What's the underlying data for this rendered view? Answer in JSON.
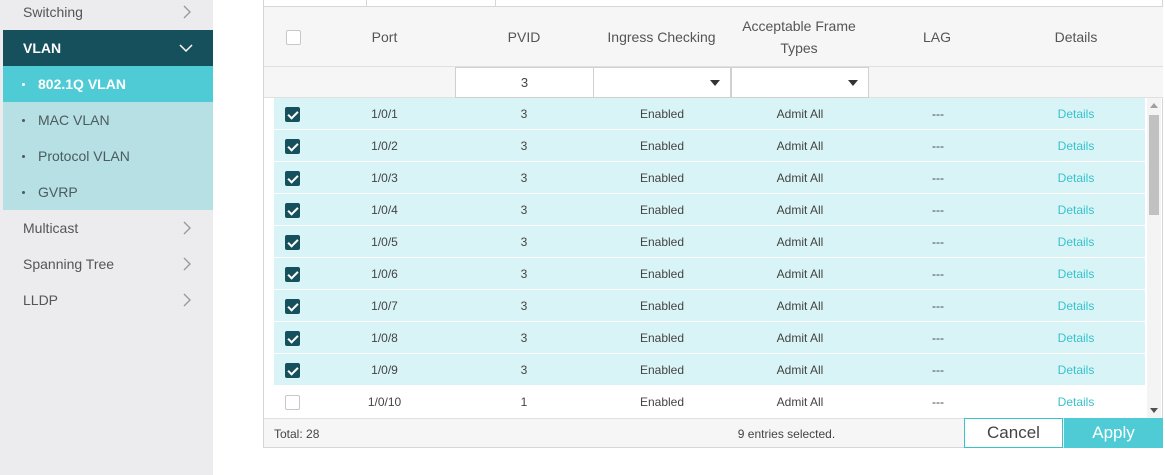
{
  "sidebar": {
    "items": [
      {
        "label": "Switching"
      },
      {
        "label": "VLAN"
      },
      {
        "label": "Multicast"
      },
      {
        "label": "Spanning Tree"
      },
      {
        "label": "LLDP"
      }
    ],
    "vlan_subitems": [
      {
        "label": "802.1Q VLAN"
      },
      {
        "label": "MAC VLAN"
      },
      {
        "label": "Protocol VLAN"
      },
      {
        "label": "GVRP"
      }
    ]
  },
  "table": {
    "headers": {
      "port": "Port",
      "pvid": "PVID",
      "ingress": "Ingress Checking",
      "frame_line1": "Acceptable Frame",
      "frame_line2": "Types",
      "lag": "LAG",
      "details": "Details"
    },
    "filter": {
      "pvid": "3",
      "ingress": "",
      "frame_types": ""
    },
    "rows": [
      {
        "checked": true,
        "port": "1/0/1",
        "pvid": "3",
        "ingress": "Enabled",
        "frame": "Admit All",
        "lag": "---",
        "details": "Details"
      },
      {
        "checked": true,
        "port": "1/0/2",
        "pvid": "3",
        "ingress": "Enabled",
        "frame": "Admit All",
        "lag": "---",
        "details": "Details"
      },
      {
        "checked": true,
        "port": "1/0/3",
        "pvid": "3",
        "ingress": "Enabled",
        "frame": "Admit All",
        "lag": "---",
        "details": "Details"
      },
      {
        "checked": true,
        "port": "1/0/4",
        "pvid": "3",
        "ingress": "Enabled",
        "frame": "Admit All",
        "lag": "---",
        "details": "Details"
      },
      {
        "checked": true,
        "port": "1/0/5",
        "pvid": "3",
        "ingress": "Enabled",
        "frame": "Admit All",
        "lag": "---",
        "details": "Details"
      },
      {
        "checked": true,
        "port": "1/0/6",
        "pvid": "3",
        "ingress": "Enabled",
        "frame": "Admit All",
        "lag": "---",
        "details": "Details"
      },
      {
        "checked": true,
        "port": "1/0/7",
        "pvid": "3",
        "ingress": "Enabled",
        "frame": "Admit All",
        "lag": "---",
        "details": "Details"
      },
      {
        "checked": true,
        "port": "1/0/8",
        "pvid": "3",
        "ingress": "Enabled",
        "frame": "Admit All",
        "lag": "---",
        "details": "Details"
      },
      {
        "checked": true,
        "port": "1/0/9",
        "pvid": "3",
        "ingress": "Enabled",
        "frame": "Admit All",
        "lag": "---",
        "details": "Details"
      },
      {
        "checked": false,
        "port": "1/0/10",
        "pvid": "1",
        "ingress": "Enabled",
        "frame": "Admit All",
        "lag": "---",
        "details": "Details"
      }
    ]
  },
  "footer": {
    "total": "Total: 28",
    "selected": "9 entries selected.",
    "cancel": "Cancel",
    "apply": "Apply"
  },
  "colors": {
    "vlan_active": "#16505c",
    "submenu_active": "#4ecbd5",
    "submenu_bg": "#b6e0e4",
    "row_selected": "#d9f4f6",
    "link": "#38c2cc"
  }
}
